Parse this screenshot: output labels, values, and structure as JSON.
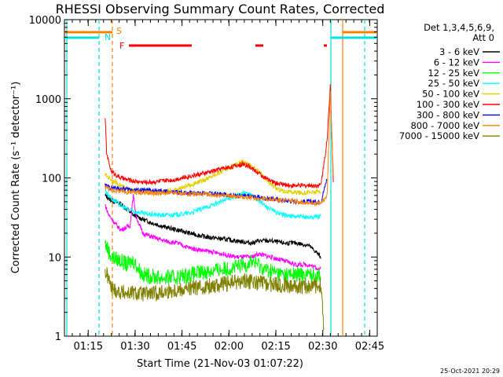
{
  "chart_data": {
    "type": "line",
    "title": "RHESSI Observing Summary Count Rates, Corrected",
    "xlabel": "Start Time (21-Nov-03 01:07:22)",
    "ylabel": "Corrected Count Rate (s⁻¹ detector⁻¹)",
    "y_scale": "log",
    "ylim": [
      1,
      10000
    ],
    "xlim_minutes": [
      0,
      100
    ],
    "x_ticks": [
      {
        "label": "01:15",
        "t": 7.6
      },
      {
        "label": "01:30",
        "t": 22.6
      },
      {
        "label": "01:45",
        "t": 37.6
      },
      {
        "label": "02:00",
        "t": 52.6
      },
      {
        "label": "02:15",
        "t": 67.6
      },
      {
        "label": "02:30",
        "t": 82.6
      },
      {
        "label": "02:45",
        "t": 97.6
      }
    ],
    "y_ticks": [
      {
        "label": "1",
        "v": 1
      },
      {
        "label": "10",
        "v": 10
      },
      {
        "label": "100",
        "v": 100
      },
      {
        "label": "1000",
        "v": 1000
      },
      {
        "label": "10000",
        "v": 10000
      }
    ],
    "legend_header": [
      "Det 1,3,4,5,6,9,",
      "Att 0"
    ],
    "flags": [
      {
        "label": "S",
        "color": "#ff8000"
      },
      {
        "label": "N",
        "color": "#00e0e0"
      },
      {
        "label": "F",
        "color": "#ff0000"
      }
    ],
    "series": [
      {
        "name": "3 - 6 keV",
        "color": "#000000",
        "points": [
          [
            13,
            60
          ],
          [
            15,
            52
          ],
          [
            18,
            47
          ],
          [
            20,
            40
          ],
          [
            22,
            34
          ],
          [
            25,
            30
          ],
          [
            28,
            27
          ],
          [
            32,
            24
          ],
          [
            36,
            22
          ],
          [
            40,
            20
          ],
          [
            45,
            18
          ],
          [
            50,
            17
          ],
          [
            55,
            16
          ],
          [
            60,
            15
          ],
          [
            62,
            16
          ],
          [
            66,
            16
          ],
          [
            70,
            15
          ],
          [
            74,
            15
          ],
          [
            78,
            14
          ],
          [
            80,
            12
          ],
          [
            82,
            10
          ]
        ]
      },
      {
        "name": "6 - 12 keV",
        "color": "#ff00ff",
        "points": [
          [
            13,
            46
          ],
          [
            14,
            35
          ],
          [
            16,
            27
          ],
          [
            18,
            22
          ],
          [
            21,
            25
          ],
          [
            22,
            60
          ],
          [
            23,
            32
          ],
          [
            25,
            20
          ],
          [
            28,
            18
          ],
          [
            32,
            16
          ],
          [
            36,
            15
          ],
          [
            40,
            13
          ],
          [
            45,
            12
          ],
          [
            50,
            11
          ],
          [
            55,
            10
          ],
          [
            60,
            10
          ],
          [
            62,
            11
          ],
          [
            66,
            10
          ],
          [
            70,
            9
          ],
          [
            74,
            8
          ],
          [
            78,
            8
          ],
          [
            82,
            7
          ]
        ]
      },
      {
        "name": "12 - 25 keV",
        "color": "#00ff00",
        "points": [
          [
            13,
            15
          ],
          [
            15,
            10
          ],
          [
            18,
            9
          ],
          [
            20,
            8
          ],
          [
            22,
            9
          ],
          [
            25,
            6
          ],
          [
            30,
            5.5
          ],
          [
            35,
            5.5
          ],
          [
            40,
            6
          ],
          [
            45,
            6.5
          ],
          [
            50,
            7
          ],
          [
            55,
            7.5
          ],
          [
            58,
            8
          ],
          [
            60,
            9
          ],
          [
            62,
            8
          ],
          [
            64,
            7
          ],
          [
            70,
            6
          ],
          [
            76,
            6
          ],
          [
            82,
            6
          ]
        ]
      },
      {
        "name": "25 - 50 keV",
        "color": "#00ffff",
        "points": [
          [
            13,
            70
          ],
          [
            15,
            55
          ],
          [
            18,
            45
          ],
          [
            20,
            40
          ],
          [
            23,
            37
          ],
          [
            26,
            35
          ],
          [
            30,
            34
          ],
          [
            35,
            34
          ],
          [
            40,
            36
          ],
          [
            45,
            42
          ],
          [
            50,
            50
          ],
          [
            54,
            58
          ],
          [
            56,
            62
          ],
          [
            58,
            65
          ],
          [
            60,
            60
          ],
          [
            62,
            52
          ],
          [
            65,
            42
          ],
          [
            68,
            36
          ],
          [
            72,
            33
          ],
          [
            76,
            32
          ],
          [
            80,
            32
          ],
          [
            82,
            33
          ]
        ]
      },
      {
        "name": "50 - 100 keV",
        "color": "#e0d000",
        "points": [
          [
            13,
            110
          ],
          [
            15,
            95
          ],
          [
            18,
            80
          ],
          [
            20,
            72
          ],
          [
            23,
            68
          ],
          [
            26,
            66
          ],
          [
            30,
            66
          ],
          [
            35,
            70
          ],
          [
            40,
            80
          ],
          [
            45,
            95
          ],
          [
            50,
            120
          ],
          [
            54,
            145
          ],
          [
            57,
            160
          ],
          [
            59,
            150
          ],
          [
            62,
            120
          ],
          [
            65,
            90
          ],
          [
            68,
            72
          ],
          [
            72,
            66
          ],
          [
            76,
            65
          ],
          [
            80,
            66
          ],
          [
            82,
            68
          ]
        ]
      },
      {
        "name": "100 - 300 keV",
        "color": "#ff0000",
        "points": [
          [
            13,
            600
          ],
          [
            13.5,
            200
          ],
          [
            15,
            120
          ],
          [
            18,
            100
          ],
          [
            20,
            95
          ],
          [
            23,
            90
          ],
          [
            26,
            88
          ],
          [
            30,
            90
          ],
          [
            35,
            95
          ],
          [
            40,
            105
          ],
          [
            45,
            115
          ],
          [
            50,
            130
          ],
          [
            54,
            140
          ],
          [
            57,
            150
          ],
          [
            59,
            140
          ],
          [
            62,
            115
          ],
          [
            65,
            95
          ],
          [
            68,
            85
          ],
          [
            72,
            80
          ],
          [
            76,
            80
          ],
          [
            80,
            80
          ],
          [
            82,
            82
          ],
          [
            84,
            300
          ],
          [
            85,
            1500
          ],
          [
            86,
            80
          ]
        ]
      },
      {
        "name": "300 - 800 keV",
        "color": "#0000ff",
        "points": [
          [
            13,
            80
          ],
          [
            15,
            75
          ],
          [
            18,
            73
          ],
          [
            20,
            72
          ],
          [
            25,
            70
          ],
          [
            30,
            68
          ],
          [
            35,
            66
          ],
          [
            40,
            65
          ],
          [
            45,
            64
          ],
          [
            50,
            62
          ],
          [
            55,
            60
          ],
          [
            60,
            58
          ],
          [
            65,
            55
          ],
          [
            70,
            52
          ],
          [
            75,
            50
          ],
          [
            80,
            50
          ],
          [
            82,
            50
          ],
          [
            84,
            100
          ]
        ]
      },
      {
        "name": "800 - 7000 keV",
        "color": "#ff8000",
        "points": [
          [
            13,
            78
          ],
          [
            15,
            70
          ],
          [
            18,
            68
          ],
          [
            20,
            66
          ],
          [
            25,
            65
          ],
          [
            30,
            64
          ],
          [
            35,
            64
          ],
          [
            40,
            63
          ],
          [
            45,
            62
          ],
          [
            50,
            60
          ],
          [
            55,
            58
          ],
          [
            60,
            56
          ],
          [
            65,
            54
          ],
          [
            70,
            52
          ],
          [
            75,
            50
          ],
          [
            80,
            48
          ],
          [
            82,
            47
          ],
          [
            84,
            60
          ],
          [
            85,
            1200
          ],
          [
            86,
            100
          ]
        ]
      },
      {
        "name": "7000 - 15000 keV",
        "color": "#808000",
        "points": [
          [
            13,
            6.5
          ],
          [
            14,
            5.5
          ],
          [
            15,
            4
          ],
          [
            18,
            3.6
          ],
          [
            20,
            3.5
          ],
          [
            22,
            3.5
          ],
          [
            25,
            3.4
          ],
          [
            30,
            3.5
          ],
          [
            35,
            3.8
          ],
          [
            40,
            4
          ],
          [
            45,
            4.2
          ],
          [
            50,
            4.5
          ],
          [
            55,
            4.8
          ],
          [
            58,
            5
          ],
          [
            60,
            4.8
          ],
          [
            65,
            4.6
          ],
          [
            70,
            4.4
          ],
          [
            75,
            4.3
          ],
          [
            80,
            4.3
          ],
          [
            82,
            4.5
          ],
          [
            83,
            1.1
          ]
        ]
      }
    ]
  },
  "footer": "25-Oct-2021 20:29"
}
